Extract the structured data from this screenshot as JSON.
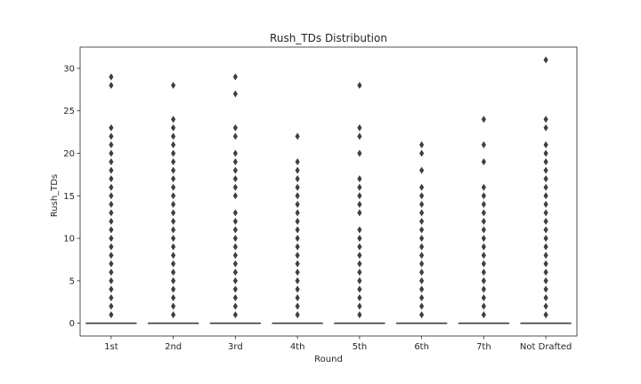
{
  "chart_data": {
    "type": "box",
    "title": "Rush_TDs Distribution",
    "xlabel": "Round",
    "ylabel": "Rush_TDs",
    "categories": [
      "1st",
      "2nd",
      "3rd",
      "4th",
      "5th",
      "6th",
      "7th",
      "Not Drafted"
    ],
    "ylim": [
      -1.5,
      32.5
    ],
    "yticks": [
      0,
      5,
      10,
      15,
      20,
      25,
      30
    ],
    "grid": false,
    "boxes": [
      {
        "category": "1st",
        "q1": 0,
        "median": 0,
        "q3": 0,
        "whisker_low": 0,
        "whisker_high": 0,
        "outliers": [
          1,
          2,
          3,
          4,
          5,
          6,
          7,
          8,
          9,
          10,
          11,
          12,
          13,
          14,
          15,
          16,
          17,
          18,
          19,
          20,
          21,
          22,
          23,
          28,
          29
        ]
      },
      {
        "category": "2nd",
        "q1": 0,
        "median": 0,
        "q3": 0,
        "whisker_low": 0,
        "whisker_high": 0,
        "outliers": [
          1,
          2,
          3,
          4,
          5,
          6,
          7,
          8,
          9,
          10,
          11,
          12,
          13,
          14,
          15,
          16,
          17,
          18,
          19,
          20,
          21,
          22,
          23,
          24,
          28
        ]
      },
      {
        "category": "3rd",
        "q1": 0,
        "median": 0,
        "q3": 0,
        "whisker_low": 0,
        "whisker_high": 0,
        "outliers": [
          1,
          2,
          3,
          4,
          5,
          6,
          7,
          8,
          9,
          10,
          11,
          12,
          13,
          15,
          16,
          17,
          18,
          19,
          20,
          22,
          23,
          27,
          29
        ]
      },
      {
        "category": "4th",
        "q1": 0,
        "median": 0,
        "q3": 0,
        "whisker_low": 0,
        "whisker_high": 0,
        "outliers": [
          1,
          2,
          3,
          4,
          5,
          6,
          7,
          8,
          9,
          10,
          11,
          12,
          13,
          14,
          15,
          16,
          17,
          18,
          19,
          22
        ]
      },
      {
        "category": "5th",
        "q1": 0,
        "median": 0,
        "q3": 0,
        "whisker_low": 0,
        "whisker_high": 0,
        "outliers": [
          1,
          2,
          3,
          4,
          5,
          6,
          7,
          8,
          9,
          10,
          11,
          13,
          14,
          15,
          16,
          17,
          20,
          22,
          23,
          28
        ]
      },
      {
        "category": "6th",
        "q1": 0,
        "median": 0,
        "q3": 0,
        "whisker_low": 0,
        "whisker_high": 0,
        "outliers": [
          1,
          2,
          3,
          4,
          5,
          6,
          7,
          8,
          9,
          10,
          11,
          12,
          13,
          14,
          15,
          16,
          18,
          20,
          21
        ]
      },
      {
        "category": "7th",
        "q1": 0,
        "median": 0,
        "q3": 0,
        "whisker_low": 0,
        "whisker_high": 0,
        "outliers": [
          1,
          2,
          3,
          4,
          5,
          6,
          7,
          8,
          9,
          10,
          11,
          12,
          13,
          14,
          15,
          16,
          19,
          21,
          24
        ]
      },
      {
        "category": "Not Drafted",
        "q1": 0,
        "median": 0,
        "q3": 0,
        "whisker_low": 0,
        "whisker_high": 0,
        "outliers": [
          1,
          2,
          3,
          4,
          5,
          6,
          7,
          8,
          9,
          10,
          11,
          12,
          13,
          14,
          15,
          16,
          17,
          18,
          19,
          20,
          21,
          23,
          24,
          31
        ]
      }
    ],
    "colors": {
      "box_line": "#3f3f3f",
      "outlier": "#3f3f3f",
      "axis": "#262626",
      "text": "#262626"
    }
  }
}
